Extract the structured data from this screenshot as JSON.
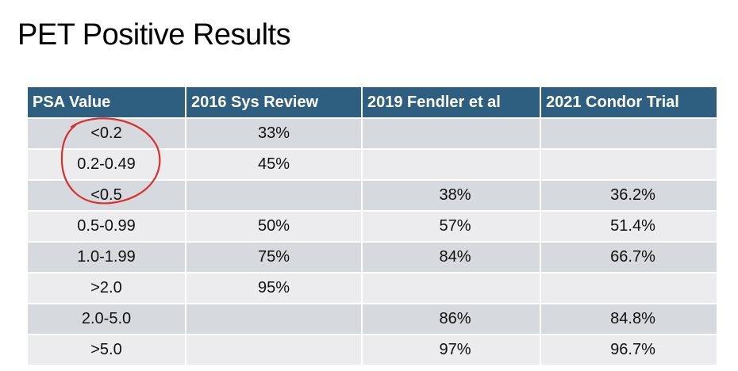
{
  "title": "PET Positive Results",
  "table": {
    "headers": [
      "PSA Value",
      "2016 Sys Review",
      "2019 Fendler et al",
      "2021 Condor Trial"
    ],
    "rows": [
      {
        "psa": "<0.2",
        "sys_review": "33%",
        "fendler": "",
        "condor": ""
      },
      {
        "psa": "0.2-0.49",
        "sys_review": "45%",
        "fendler": "",
        "condor": ""
      },
      {
        "psa": "<0.5",
        "sys_review": "",
        "fendler": "38%",
        "condor": "36.2%"
      },
      {
        "psa": "0.5-0.99",
        "sys_review": "50%",
        "fendler": "57%",
        "condor": "51.4%"
      },
      {
        "psa": "1.0-1.99",
        "sys_review": "75%",
        "fendler": "84%",
        "condor": "66.7%"
      },
      {
        "psa": ">2.0",
        "sys_review": "95%",
        "fendler": "",
        "condor": ""
      },
      {
        "psa": "2.0-5.0",
        "sys_review": "",
        "fendler": "86%",
        "condor": "84.8%"
      },
      {
        "psa": ">5.0",
        "sys_review": "",
        "fendler": "97%",
        "condor": "96.7%"
      }
    ]
  },
  "colors": {
    "header_bg": "#2e5f80",
    "row_dark": "#d6d9de",
    "row_light": "#ececee",
    "annotation": "#d9302c"
  }
}
